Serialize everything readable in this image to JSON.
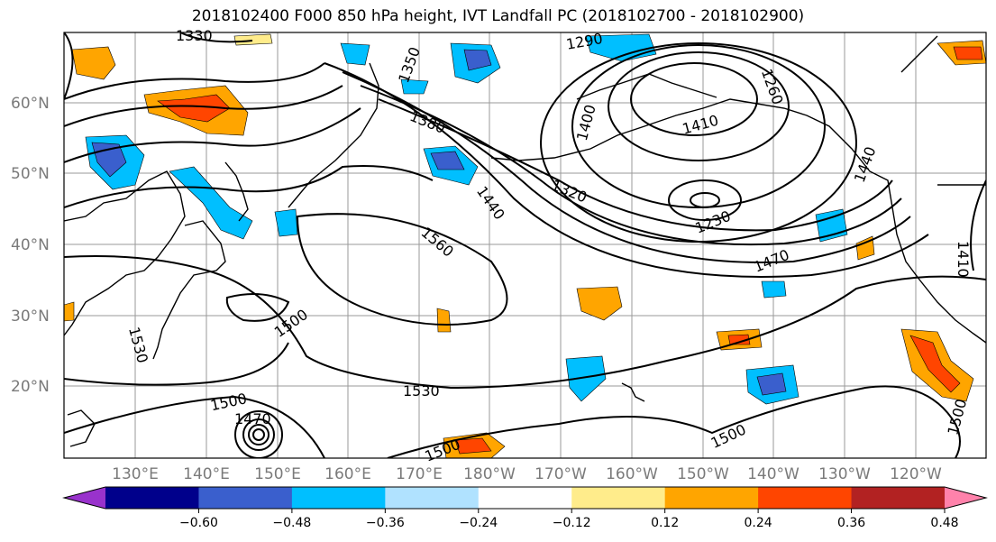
{
  "title": "2018102400 F000 850 hPa height, IVT Landfall PC (2018102700 - 2018102900)",
  "map": {
    "lat_labels": [
      "60°N",
      "50°N",
      "40°N",
      "30°N",
      "20°N"
    ],
    "lon_labels": [
      "130°E",
      "140°E",
      "150°E",
      "160°E",
      "170°E",
      "180°W",
      "170°W",
      "160°W",
      "150°W",
      "140°W",
      "130°W",
      "120°W"
    ],
    "contour_labels": [
      "1330",
      "1350",
      "1290",
      "1260",
      "1380",
      "1400",
      "1410",
      "1440",
      "1320",
      "1230",
      "1440",
      "1470",
      "1560",
      "1500",
      "1530",
      "1530",
      "1500",
      "1470",
      "1500",
      "1500",
      "1500",
      "1410"
    ]
  },
  "colorbar": {
    "colors": [
      "#9932cc",
      "#00008b",
      "#3a5fcd",
      "#00bfff",
      "#b0e2ff",
      "#ffffff",
      "#ffec8b",
      "#ffa500",
      "#ff4500",
      "#b22222",
      "#ff82ab"
    ],
    "ticks": [
      "−0.60",
      "−0.48",
      "−0.36",
      "−0.24",
      "−0.12",
      "0.12",
      "0.24",
      "0.36",
      "0.48",
      "0.60"
    ]
  }
}
